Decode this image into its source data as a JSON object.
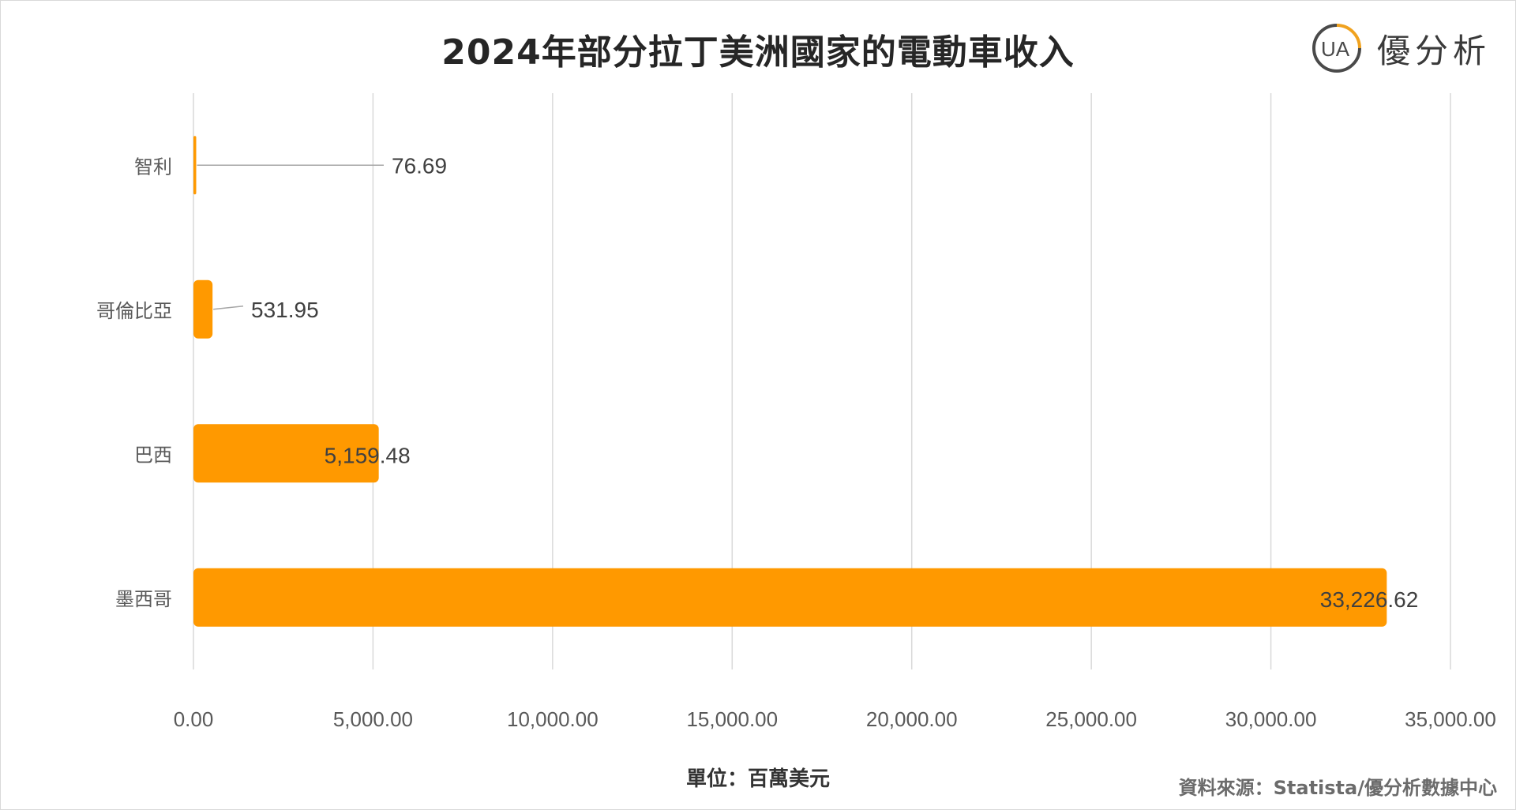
{
  "logo": {
    "mark": "UA",
    "text": "優分析",
    "accent_color": "#F0A21F",
    "dark_color": "#4a4a4a"
  },
  "unit_label": "單位：百萬美元",
  "source_label": "資料來源：Statista/優分析數據中心",
  "chart_data": {
    "type": "bar",
    "orientation": "horizontal",
    "title": "2024年部分拉丁美洲國家的電動車收入",
    "categories": [
      "智利",
      "哥倫比亞",
      "巴西",
      "墨西哥"
    ],
    "values": [
      76.69,
      531.95,
      5159.48,
      33226.62
    ],
    "data_labels": [
      "76.69",
      "531.95",
      "5,159.48",
      "33,226.62"
    ],
    "x_ticks": [
      "0.00",
      "5,000.00",
      "10,000.00",
      "15,000.00",
      "20,000.00",
      "25,000.00",
      "30,000.00",
      "35,000.00"
    ],
    "xlim": [
      0,
      35000
    ],
    "xlabel": "單位：百萬美元",
    "ylabel": "",
    "grid": "vertical",
    "legend": "none",
    "bar_color": "#FF9900",
    "grid_color": "#d9d9d9",
    "text_color": "#595959"
  }
}
